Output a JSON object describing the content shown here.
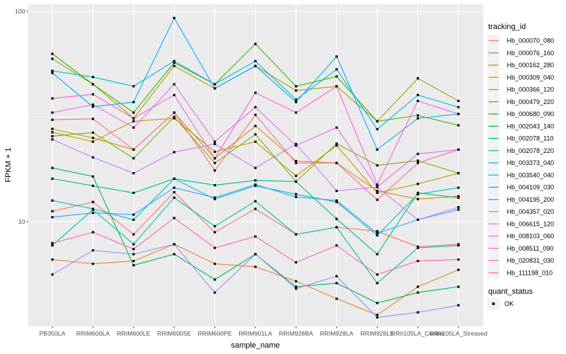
{
  "figure": {
    "background": "#FFFFFF",
    "panel_background": "#EBEBEB",
    "gridline_color": "#FFFFFF",
    "axis_text_color": "#4D4D4D",
    "tick_color": "#333333",
    "legend_key_fill": "#F2F2F2",
    "marker_color": "#000000"
  },
  "y_axis": {
    "title": "FPKM + 1",
    "ticks": [
      {
        "label": "100",
        "value": 100
      },
      {
        "label": "10",
        "value": 10
      }
    ],
    "minor_breaks": [
      31.62,
      3.162
    ]
  },
  "x_axis": {
    "title": "sample_name"
  },
  "legend": {
    "tracking_title": "tracking_id",
    "quant_title": "quant_status",
    "quant_ok_label": "OK"
  },
  "chart_data": {
    "type": "line",
    "title": "",
    "xlabel": "sample_name",
    "ylabel": "FPKM + 1",
    "y_scale": "log10",
    "ylim": [
      3.16,
      108
    ],
    "y_tick_values": [
      10,
      100
    ],
    "grid": true,
    "legend_position": "right",
    "marker": "filled-black-square",
    "quant_status_all": "OK",
    "categories": [
      "PB350LA",
      "RRIM600LA",
      "RRIM600LE",
      "RRIM600SE",
      "RRIM600PE",
      "RRIM901LA",
      "RRIM928BA",
      "RRIM928LA",
      "RRIM928LE",
      "RRII105LA_Control",
      "RRII105LA_Stressed"
    ],
    "series": [
      {
        "name": "Hb_000070_080",
        "color": "#F8766D",
        "values": [
          11.2,
          12.4,
          8.7,
          13.8,
          8.9,
          11.5,
          8.7,
          9.4,
          9.0,
          7.6,
          7.8
        ]
      },
      {
        "name": "Hb_000076_160",
        "color": "#EA8331",
        "values": [
          6.6,
          6.3,
          6.5,
          7.8,
          6.3,
          6.1,
          5.2,
          4.3,
          3.6,
          4.9,
          5.9
        ]
      },
      {
        "name": "Hb_000162_280",
        "color": "#D89000",
        "values": [
          27.6,
          25.0,
          22.0,
          33.0,
          20.0,
          28.5,
          19.4,
          19.0,
          14.0,
          12.8,
          13.2
        ]
      },
      {
        "name": "Hb_000309_040",
        "color": "#C09B00",
        "values": [
          26.6,
          24.0,
          30.0,
          31.0,
          21.5,
          24.0,
          16.5,
          23.0,
          13.7,
          15.1,
          17.0
        ]
      },
      {
        "name": "Hb_000366_120",
        "color": "#A3A500",
        "values": [
          59.5,
          45.0,
          31.0,
          55.0,
          43.0,
          55.0,
          42.0,
          44.0,
          30.0,
          48.0,
          37.5
        ]
      },
      {
        "name": "Hb_000479_220",
        "color": "#7CAE00",
        "values": [
          25.5,
          26.5,
          20.0,
          31.5,
          19.0,
          26.0,
          15.5,
          23.5,
          18.5,
          19.5,
          17.0
        ]
      },
      {
        "name": "Hb_000680_090",
        "color": "#39B600",
        "values": [
          62.8,
          45.0,
          33.0,
          57.0,
          45.0,
          70.0,
          44.0,
          49.0,
          30.0,
          32.0,
          28.7
        ]
      },
      {
        "name": "Hb_002043_140",
        "color": "#00BB4E",
        "values": [
          18.0,
          16.4,
          6.2,
          7.0,
          5.3,
          7.0,
          4.9,
          5.1,
          4.1,
          4.6,
          4.9
        ]
      },
      {
        "name": "Hb_002078_110",
        "color": "#00BF7D",
        "values": [
          16.0,
          14.8,
          13.7,
          16.0,
          14.9,
          15.7,
          15.5,
          10.3,
          7.0,
          13.7,
          13.0
        ]
      },
      {
        "name": "Hb_002078_220",
        "color": "#00C1A3",
        "values": [
          7.7,
          11.4,
          7.8,
          13.0,
          9.5,
          12.5,
          8.7,
          9.4,
          5.1,
          7.5,
          7.7
        ]
      },
      {
        "name": "Hb_003373_040",
        "color": "#00BFC4",
        "values": [
          12.6,
          11.5,
          10.2,
          16.0,
          12.8,
          14.8,
          13.5,
          12.4,
          8.6,
          13.5,
          14.5
        ]
      },
      {
        "name": "Hb_003540_040",
        "color": "#00BAE0",
        "values": [
          52.1,
          48.7,
          44.0,
          58.0,
          45.0,
          58.0,
          38.0,
          53.0,
          27.5,
          40.0,
          35.0
        ]
      },
      {
        "name": "Hb_004109_030",
        "color": "#00B0F6",
        "values": [
          50.9,
          35.2,
          37.0,
          93.0,
          43.0,
          55.0,
          37.0,
          61.0,
          22.0,
          31.0,
          32.5
        ]
      },
      {
        "name": "Hb_004195_200",
        "color": "#35A2FF",
        "values": [
          10.5,
          11.0,
          10.8,
          14.5,
          13.0,
          15.0,
          13.1,
          12.6,
          8.8,
          10.2,
          11.4
        ]
      },
      {
        "name": "Hb_004357_020",
        "color": "#9590FF",
        "values": [
          5.6,
          7.3,
          7.0,
          7.8,
          4.6,
          7.0,
          4.8,
          5.5,
          3.5,
          3.7,
          4.0
        ]
      },
      {
        "name": "Hb_006615_120",
        "color": "#C77CFF",
        "values": [
          24.6,
          20.2,
          17.0,
          21.4,
          23.4,
          18.0,
          23.4,
          14.0,
          14.6,
          10.2,
          11.7
        ]
      },
      {
        "name": "Hb_008103_060",
        "color": "#E76BF3",
        "values": [
          33.0,
          36.0,
          28.0,
          45.0,
          24.0,
          35.0,
          23.0,
          28.0,
          14.6,
          21.0,
          22.0
        ]
      },
      {
        "name": "Hb_008511_090",
        "color": "#FA62DB",
        "values": [
          38.5,
          40.3,
          31.0,
          40.0,
          20.0,
          41.0,
          33.0,
          44.0,
          15.0,
          37.5,
          32.5
        ]
      },
      {
        "name": "Hb_020831_030",
        "color": "#FF62BC",
        "values": [
          7.9,
          8.9,
          7.4,
          10.4,
          7.5,
          8.5,
          6.4,
          7.7,
          5.6,
          6.5,
          6.6
        ]
      },
      {
        "name": "Hb_111198_010",
        "color": "#FF6A98",
        "values": [
          30.5,
          30.8,
          22.0,
          33.0,
          17.5,
          32.2,
          19.0,
          19.0,
          12.7,
          19.0,
          22.0
        ]
      }
    ]
  }
}
